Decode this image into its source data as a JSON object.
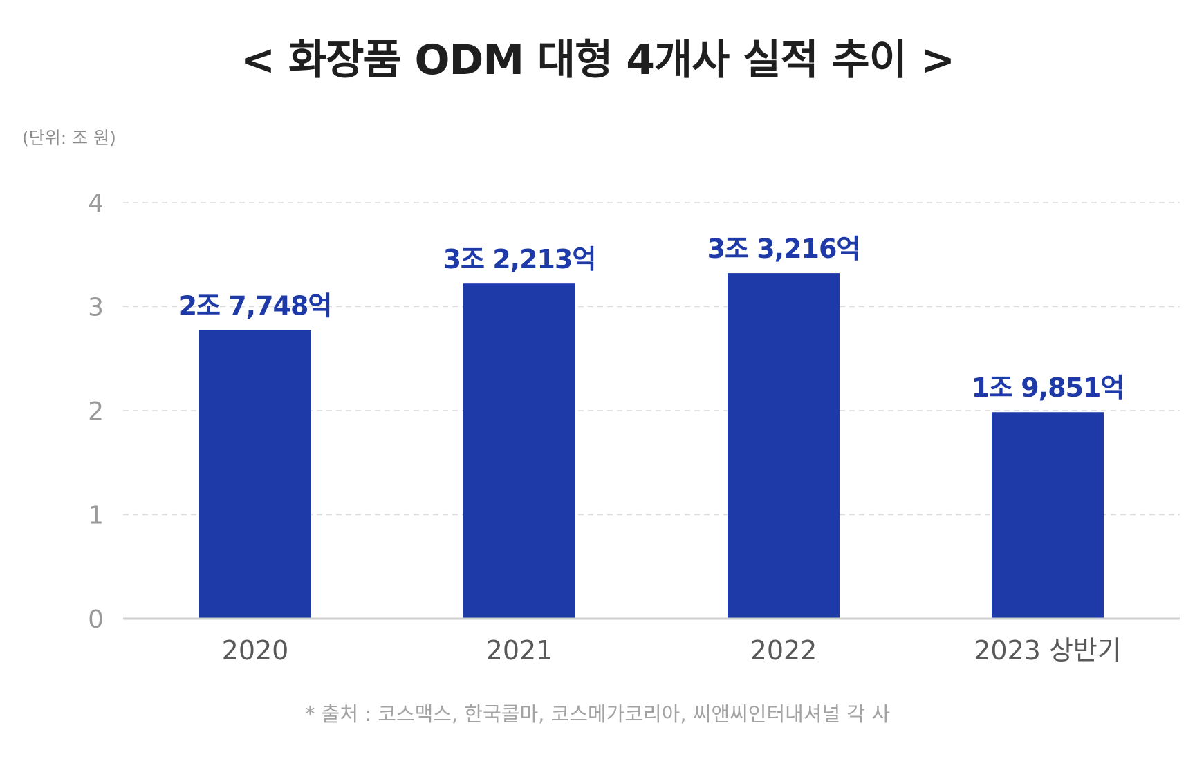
{
  "chart_data": {
    "type": "bar",
    "title": "< 화장품 ODM 대형 4개사 실적 추이 >",
    "unit_label": "(단위: 조 원)",
    "source_note": "* 출처 : 코스맥스, 한국콜마, 코스메가코리아, 씨앤씨인터내셔널 각 사",
    "categories": [
      "2020",
      "2021",
      "2022",
      "2023 상반기"
    ],
    "values": [
      2.7748,
      3.2213,
      3.3216,
      1.9851
    ],
    "data_labels": [
      "2조 7,748억",
      "3조 2,213억",
      "3조 3,216억",
      "1조 9,851억"
    ],
    "ylim": [
      0,
      4
    ],
    "yticks": [
      0,
      1,
      2,
      3,
      4
    ],
    "grid": true,
    "legend": "none",
    "colors": {
      "bar": "#1e3aa8",
      "data_label": "#1e3aa8",
      "grid": "#dcdcdc",
      "axis": "#cfcfcf"
    }
  }
}
